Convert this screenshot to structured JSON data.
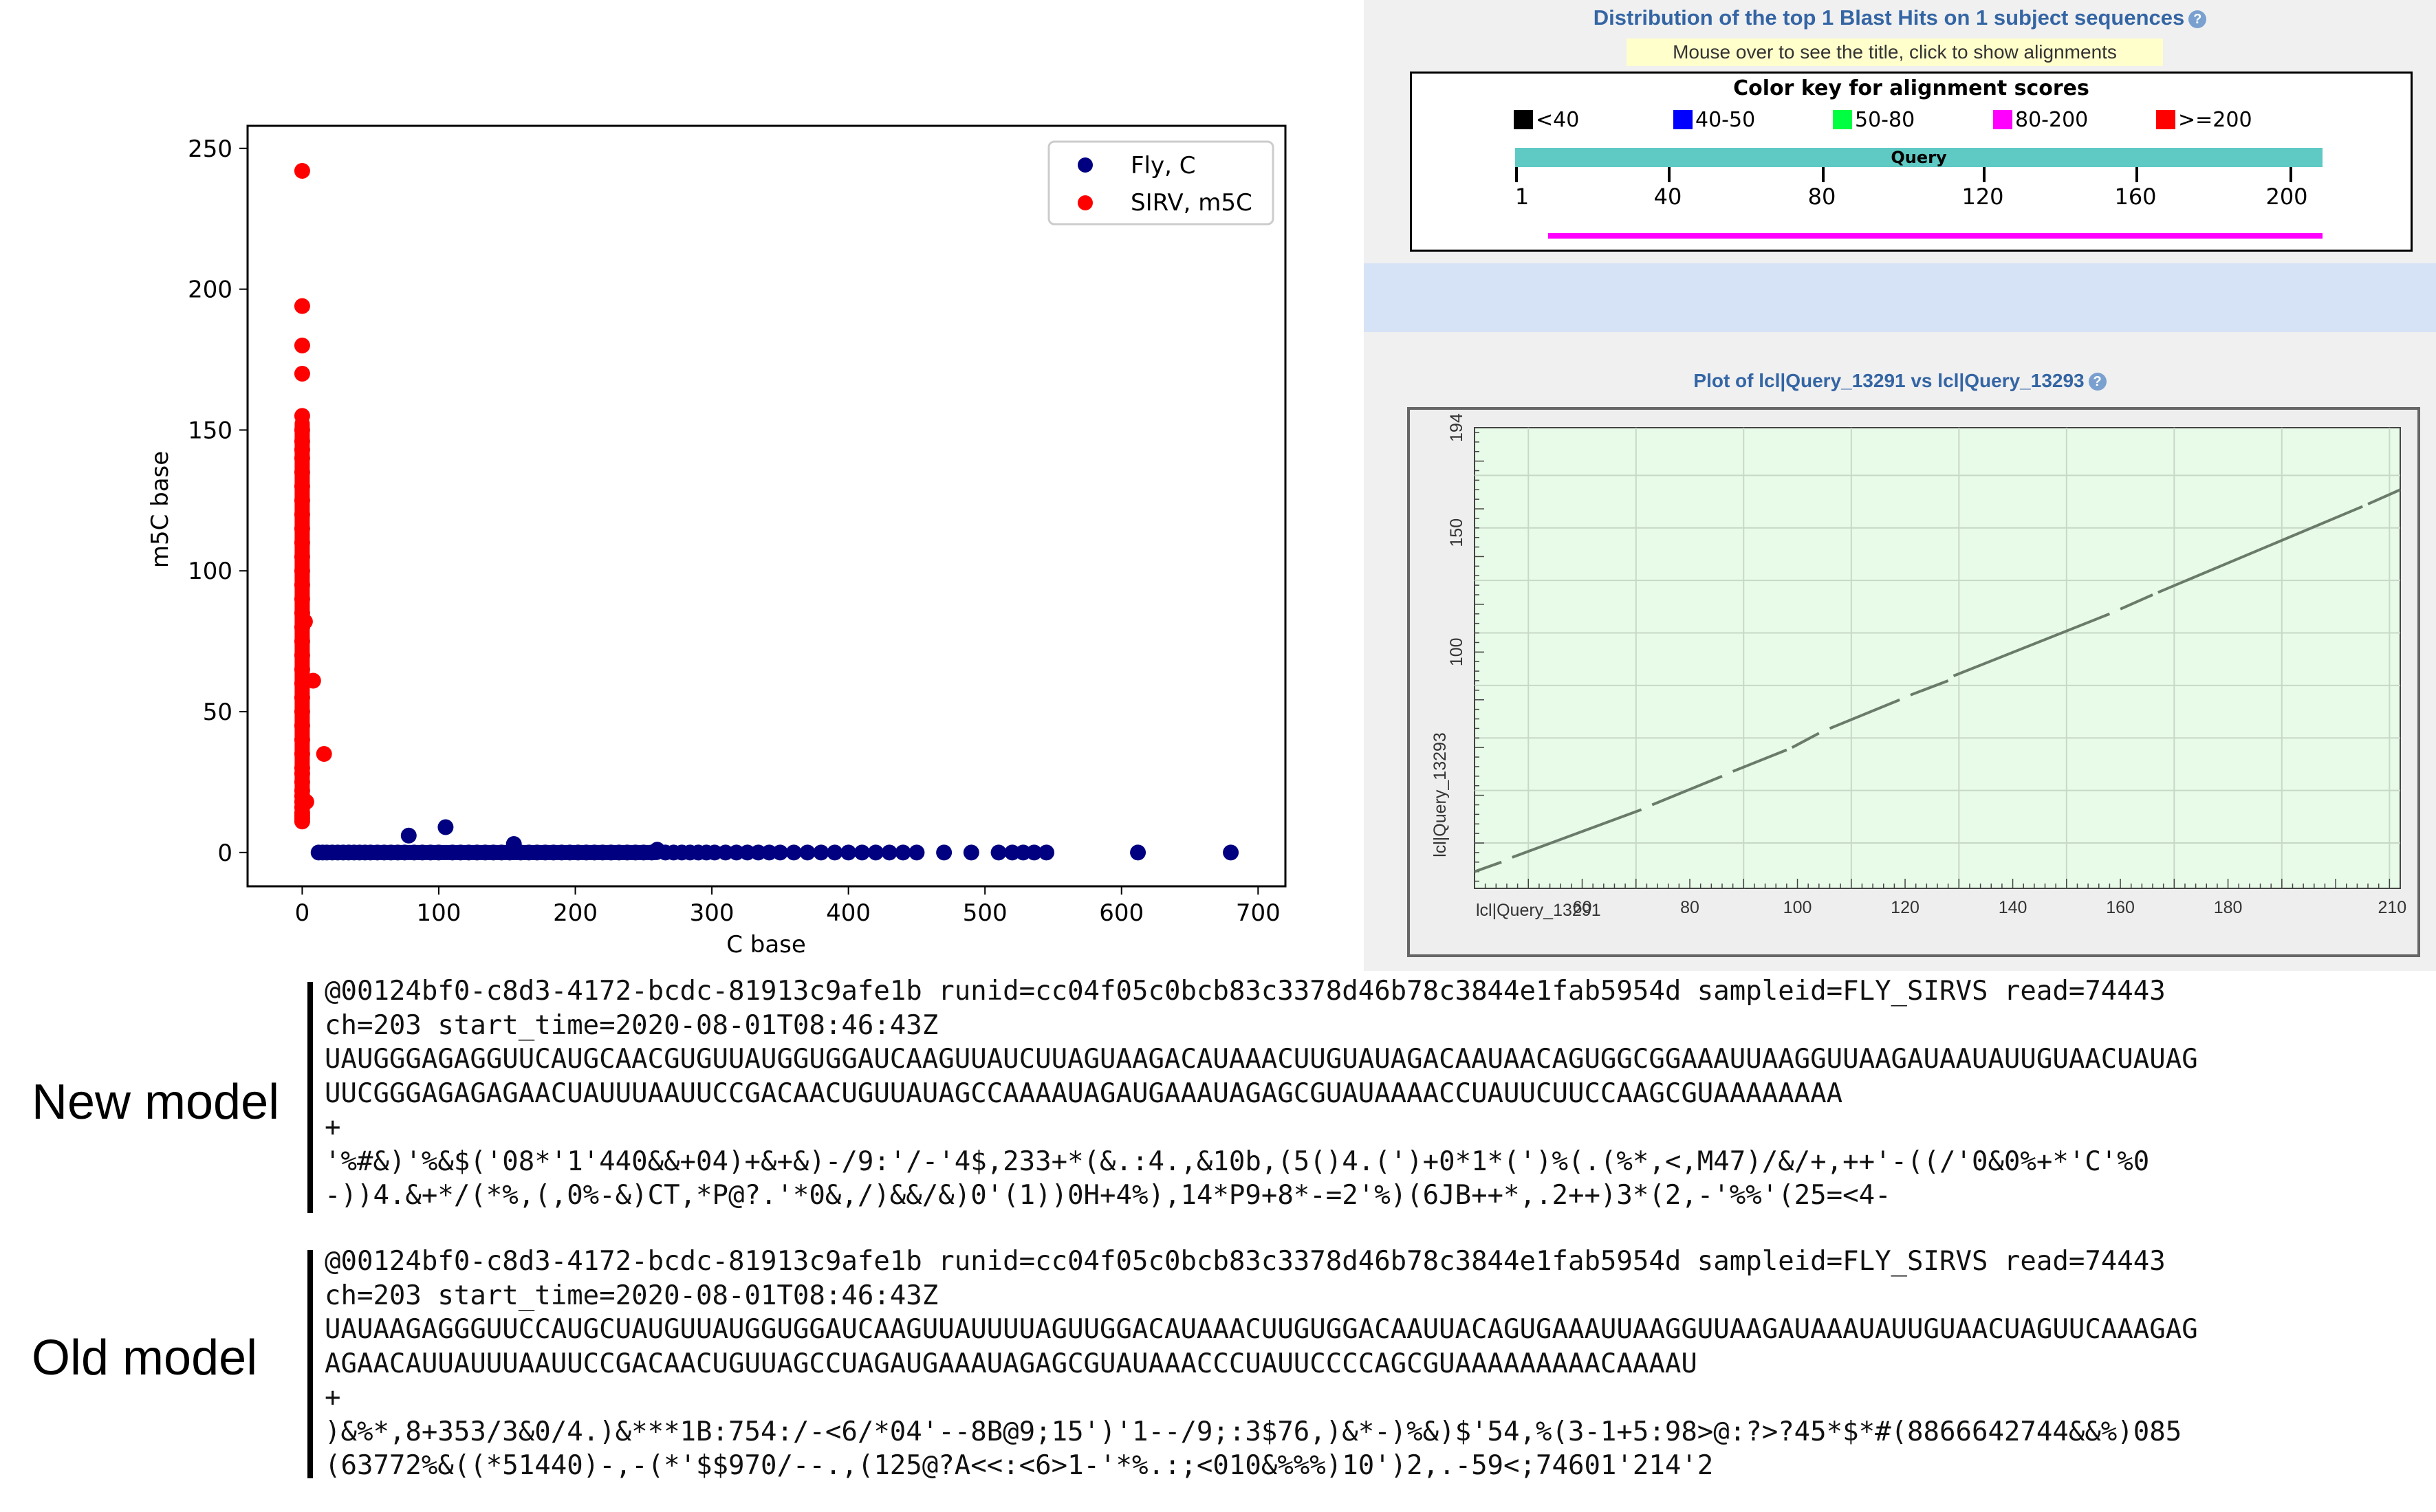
{
  "chart_data": [
    {
      "type": "scatter",
      "xlabel": "C base",
      "ylabel": "m5C base",
      "xlim": [
        -40,
        720
      ],
      "ylim": [
        -12,
        258
      ],
      "xticks": [
        0,
        100,
        200,
        300,
        400,
        500,
        600,
        700
      ],
      "yticks": [
        0,
        50,
        100,
        150,
        200,
        250
      ],
      "legend_position": "top-right",
      "series": [
        {
          "name": "Fly, C",
          "color": "#000080",
          "x": [
            12,
            15,
            18,
            22,
            26,
            30,
            34,
            38,
            42,
            46,
            50,
            55,
            60,
            65,
            70,
            75,
            78,
            82,
            88,
            94,
            100,
            105,
            110,
            116,
            122,
            128,
            134,
            140,
            146,
            152,
            155,
            160,
            166,
            172,
            178,
            184,
            190,
            196,
            202,
            208,
            214,
            220,
            226,
            232,
            238,
            244,
            250,
            256,
            260,
            266,
            272,
            278,
            284,
            290,
            296,
            302,
            310,
            318,
            326,
            334,
            342,
            350,
            360,
            370,
            380,
            390,
            400,
            410,
            420,
            430,
            440,
            450,
            470,
            490,
            510,
            520,
            528,
            536,
            545,
            612,
            680
          ],
          "y": [
            0,
            0,
            0,
            0,
            0,
            0,
            0,
            0,
            0,
            0,
            0,
            0,
            0,
            0,
            0,
            0,
            6,
            0,
            0,
            0,
            0,
            9,
            0,
            0,
            0,
            0,
            0,
            0,
            0,
            0,
            3,
            0,
            0,
            0,
            0,
            0,
            0,
            0,
            0,
            0,
            0,
            0,
            0,
            0,
            0,
            0,
            0,
            0,
            1,
            0,
            0,
            0,
            0,
            0,
            0,
            0,
            0,
            0,
            0,
            0,
            0,
            0,
            0,
            0,
            0,
            0,
            0,
            0,
            0,
            0,
            0,
            0,
            0,
            0,
            0,
            0,
            0,
            0,
            0,
            0,
            0
          ]
        },
        {
          "name": "SIRV, m5C",
          "color": "#ff0000",
          "x": [
            0,
            0,
            0,
            0,
            0,
            0,
            0,
            0,
            0,
            0,
            0,
            0,
            0,
            0,
            0,
            0,
            0,
            0,
            0,
            0,
            0,
            0,
            0,
            0,
            0,
            0,
            0,
            0,
            0,
            0,
            0,
            0,
            0,
            0,
            0,
            0,
            0,
            0,
            0,
            0,
            0,
            2,
            3,
            8,
            16
          ],
          "y": [
            242,
            194,
            180,
            170,
            155,
            150,
            146,
            143,
            140,
            135,
            130,
            125,
            120,
            115,
            110,
            105,
            100,
            95,
            90,
            85,
            80,
            75,
            70,
            65,
            60,
            55,
            50,
            45,
            40,
            35,
            30,
            28,
            25,
            22,
            20,
            18,
            16,
            14,
            13,
            12,
            11,
            82,
            18,
            61,
            35
          ]
        }
      ]
    },
    {
      "type": "line",
      "title": "Plot of lcl|Query_13291 vs lcl|Query_13293",
      "xlabel": "lcl|Query_13291",
      "ylabel": "lcl|Query_13293",
      "xlim": [
        40,
        212
      ],
      "ylim": [
        1,
        194
      ],
      "xticks": [
        60,
        80,
        100,
        120,
        140,
        160,
        180,
        210
      ],
      "yticks": [
        100,
        150,
        194
      ],
      "series": [
        {
          "segments": [
            {
              "x": [
                40,
                45
              ],
              "y": [
                8,
                12
              ]
            },
            {
              "x": [
                47,
                71
              ],
              "y": [
                14,
                34
              ]
            },
            {
              "x": [
                73,
                86
              ],
              "y": [
                36,
                48
              ]
            },
            {
              "x": [
                88,
                98
              ],
              "y": [
                50,
                59
              ]
            },
            {
              "x": [
                99,
                104
              ],
              "y": [
                60,
                66
              ]
            },
            {
              "x": [
                106,
                119
              ],
              "y": [
                68,
                80
              ]
            },
            {
              "x": [
                121,
                128
              ],
              "y": [
                82,
                88
              ]
            },
            {
              "x": [
                129,
                158
              ],
              "y": [
                90,
                116
              ]
            },
            {
              "x": [
                160,
                166
              ],
              "y": [
                118,
                124
              ]
            },
            {
              "x": [
                167,
                205
              ],
              "y": [
                125,
                161
              ]
            },
            {
              "x": [
                206,
                212
              ],
              "y": [
                162,
                168
              ]
            }
          ]
        }
      ]
    }
  ],
  "blast": {
    "title": "Distribution of the top 1 Blast Hits on 1 subject sequences",
    "subtitle": "Mouse over to see the title, click to show alignments",
    "colorkey_title": "Color key for alignment scores",
    "colorkey": [
      {
        "label": "<40",
        "color": "#000000"
      },
      {
        "label": "40-50",
        "color": "#0000ff"
      },
      {
        "label": "50-80",
        "color": "#00ff40"
      },
      {
        "label": "80-200",
        "color": "#ff00ff"
      },
      {
        "label": ">=200",
        "color": "#ff0000"
      }
    ],
    "query_label": "Query",
    "query_ticks": [
      "1",
      "40",
      "80",
      "120",
      "160",
      "200"
    ],
    "help_icon": "?"
  },
  "new_model": {
    "label": "New model",
    "lines": [
      "@00124bf0-c8d3-4172-bcdc-81913c9afe1b runid=cc04f05c0bcb83c3378d46b78c3844e1fab5954d sampleid=FLY_SIRVS read=74443",
      "ch=203 start_time=2020-08-01T08:46:43Z",
      "UAUGGGAGAGGUUCAUGCAACGUGUUAUGGUGGAUCAAGUUAUCUUAGUAAGACAUAAACUUGUAUAGACAAUAACAGUGGCGGAAAUUAAGGUUAAGAUAAUAUUGUAACUAUAG",
      "UUCGGGAGAGAGAACUAUUUAAUUCCGACAACUGUUAUAGCCAAAAUAGAUGAAAUAGAGCGUAUAAAACCUAUUCUUCCAAGCGUAAAAAAAA",
      "+",
      "'%#&)'%&$('08*'1'440&&+04)+&+&)-/9:'/-'4$,233+*(&.:4.,&10b,(5()4.(')+0*1*(')%(.(%*,<,M47)/&/+,++'-((/'0&0%+*'C'%0",
      "-))4.&+*/(*%,(,0%-&)CT,*P@?.'*0&,/)&&/&)0'(1))0H+4%),14*P9+8*-=2'%)(6JB++*,.2++)3*(2,-'%%'(25=<4-"
    ]
  },
  "old_model": {
    "label": "Old model",
    "lines": [
      "@00124bf0-c8d3-4172-bcdc-81913c9afe1b runid=cc04f05c0bcb83c3378d46b78c3844e1fab5954d sampleid=FLY_SIRVS read=74443",
      "ch=203 start_time=2020-08-01T08:46:43Z",
      "UAUAAGAGGGUUCCAUGCUAUGUUAUGGUGGAUCAAGUUAUUUUAGUUGGACAUAAACUUGUGGACAAUUACAGUGAAAUUAAGGUUAAGAUAAAUAUUGUAACUAGUUCAAAGAG",
      "AGAACAUUAUUUAAUUCCGACAACUGUUAGCCUAGAUGAAAUAGAGCGUAUAAACCCUAUUCCCCAGCGUAAAAAAAAACAAAAU",
      "+",
      ")&%*,8+353/3&0/4.)&***1B:754:/-<6/*04'--8B@9;15')'1--/9;:3$76,)&*-)%&)$'54,%(3-1+5:98>@:?>?45*$*#(8866642744&&%)085",
      "(63772%&((*51440)-,-(*'$$970/--.,(125@?A<<:<6>1-'*%.:;<010&%%%)10')2,.-59<;74601'214'2"
    ]
  }
}
